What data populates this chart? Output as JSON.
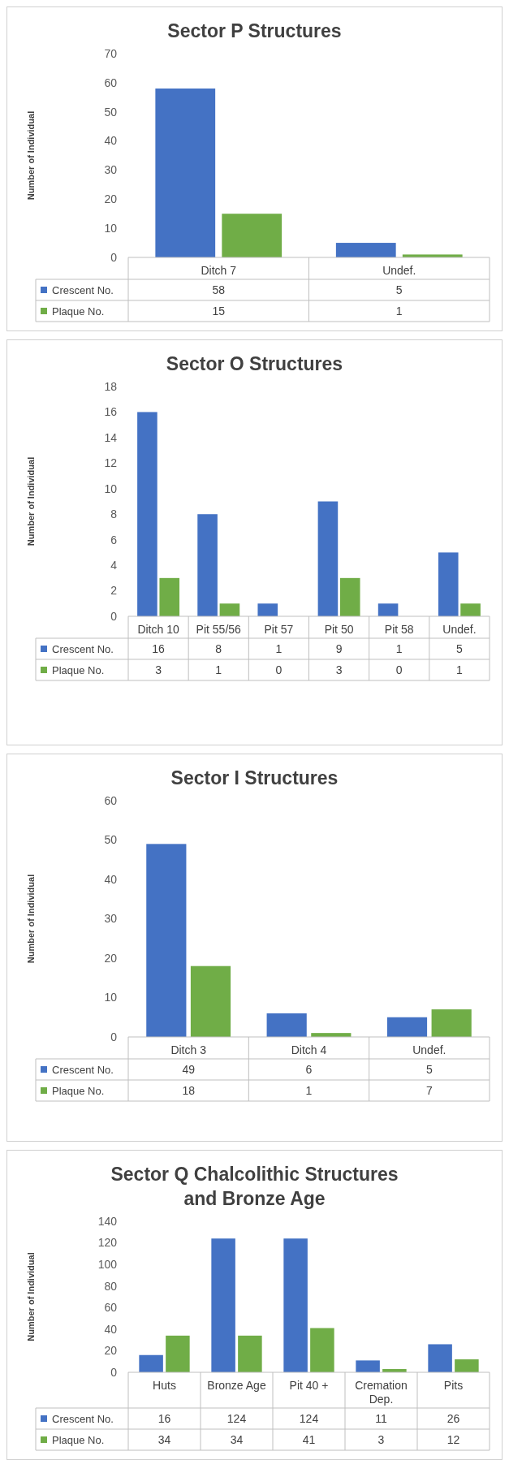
{
  "chart_data": [
    {
      "type": "bar",
      "title": "Sector P Structures",
      "ylabel": "Number of Individual",
      "categories": [
        "Ditch 7",
        "Undef."
      ],
      "series": [
        {
          "name": "Crescent No.",
          "color": "#4472c4",
          "values": [
            58,
            5
          ]
        },
        {
          "name": "Plaque No.",
          "color": "#70ad47",
          "values": [
            15,
            1
          ]
        }
      ],
      "ylim": [
        0,
        70
      ],
      "yticks": [
        0,
        10,
        20,
        30,
        40,
        50,
        60,
        70
      ],
      "data_labels": true,
      "legend": "bottom",
      "grid": false
    },
    {
      "type": "bar",
      "title": "Sector O Structures",
      "ylabel": "Number of Individual",
      "categories": [
        "Ditch 10",
        "Pit 55/56",
        "Pit 57",
        "Pit 50",
        "Pit 58",
        "Undef."
      ],
      "series": [
        {
          "name": "Crescent No.",
          "color": "#4472c4",
          "values": [
            16,
            8,
            1,
            9,
            1,
            5
          ]
        },
        {
          "name": "Plaque No.",
          "color": "#70ad47",
          "values": [
            3,
            1,
            0,
            3,
            0,
            1
          ]
        }
      ],
      "ylim": [
        0,
        18
      ],
      "yticks": [
        0,
        2,
        4,
        6,
        8,
        10,
        12,
        14,
        16,
        18
      ],
      "data_labels": true,
      "legend": "bottom",
      "grid": false
    },
    {
      "type": "bar",
      "title": "Sector I Structures",
      "ylabel": "Number of Individual",
      "categories": [
        "Ditch 3",
        "Ditch 4",
        "Undef."
      ],
      "series": [
        {
          "name": "Crescent No.",
          "color": "#4472c4",
          "values": [
            49,
            6,
            5
          ]
        },
        {
          "name": "Plaque No.",
          "color": "#70ad47",
          "values": [
            18,
            1,
            7
          ]
        }
      ],
      "ylim": [
        0,
        60
      ],
      "yticks": [
        0,
        10,
        20,
        30,
        40,
        50,
        60
      ],
      "data_labels": true,
      "legend": "bottom",
      "grid": false
    },
    {
      "type": "bar",
      "title": "Sector Q Chalcolithic Structures and Bronze Age",
      "ylabel": "Number of Individual",
      "categories": [
        "Huts",
        "Bronze Age",
        "Pit 40 +",
        "Cremation Dep.",
        "Pits"
      ],
      "series": [
        {
          "name": "Crescent No.",
          "color": "#4472c4",
          "values": [
            16,
            124,
            124,
            11,
            26
          ]
        },
        {
          "name": "Plaque No.",
          "color": "#70ad47",
          "values": [
            34,
            34,
            41,
            3,
            12
          ]
        }
      ],
      "ylim": [
        0,
        140
      ],
      "yticks": [
        0,
        20,
        40,
        60,
        80,
        100,
        120,
        140
      ],
      "data_labels": true,
      "legend": "bottom",
      "grid": false
    }
  ]
}
